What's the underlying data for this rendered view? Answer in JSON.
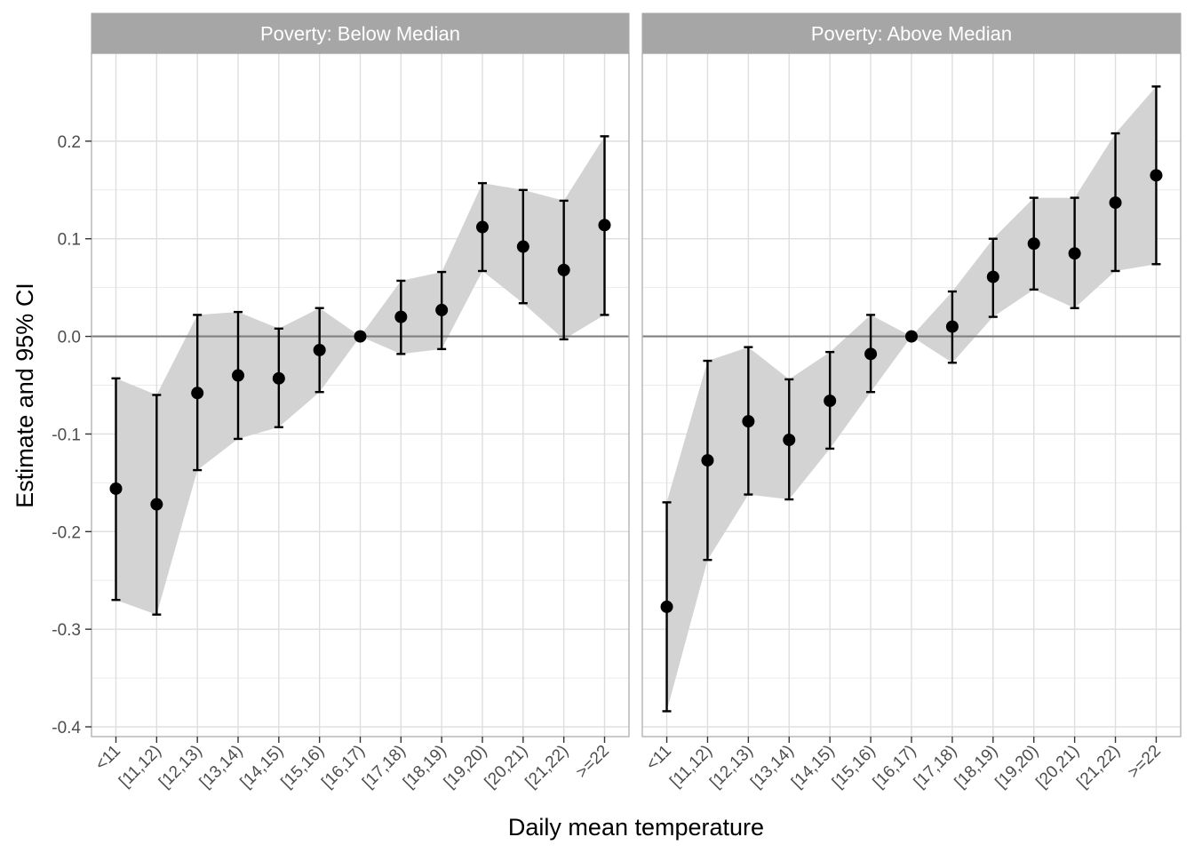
{
  "chart_data": {
    "type": "scatter",
    "ylabel": "Estimate and 95% CI",
    "xlabel": "Daily mean temperature",
    "categories": [
      "<11",
      "[11,12)",
      "[12,13)",
      "[13,14)",
      "[14,15)",
      "[15,16)",
      "[16,17)",
      "[17,18)",
      "[18,19)",
      "[19,20)",
      "[20,21)",
      "[21,22)",
      ">=22"
    ],
    "ylim": [
      -0.41,
      0.29
    ],
    "yticks": [
      -0.4,
      -0.3,
      -0.2,
      -0.1,
      0.0,
      0.1,
      0.2
    ],
    "ytick_labels": [
      "-0.4",
      "-0.3",
      "-0.2",
      "-0.1",
      "0.0",
      "0.1",
      "0.2"
    ],
    "reference_line": 0,
    "grid": true,
    "panels": [
      {
        "strip_label": "Poverty: Below Median",
        "estimate": [
          -0.156,
          -0.172,
          -0.058,
          -0.04,
          -0.043,
          -0.014,
          0.0,
          0.02,
          0.027,
          0.112,
          0.092,
          0.068,
          0.114
        ],
        "ci_lower": [
          -0.27,
          -0.285,
          -0.137,
          -0.105,
          -0.093,
          -0.057,
          0.0,
          -0.018,
          -0.013,
          0.067,
          0.034,
          -0.003,
          0.022
        ],
        "ci_upper": [
          -0.043,
          -0.06,
          0.022,
          0.025,
          0.008,
          0.029,
          0.0,
          0.057,
          0.066,
          0.157,
          0.15,
          0.139,
          0.205
        ]
      },
      {
        "strip_label": "Poverty: Above Median",
        "estimate": [
          -0.277,
          -0.127,
          -0.087,
          -0.106,
          -0.066,
          -0.018,
          0.0,
          0.01,
          0.061,
          0.095,
          0.085,
          0.137,
          0.165
        ],
        "ci_lower": [
          -0.384,
          -0.229,
          -0.162,
          -0.167,
          -0.115,
          -0.057,
          0.0,
          -0.027,
          0.02,
          0.048,
          0.029,
          0.067,
          0.074
        ],
        "ci_upper": [
          -0.17,
          -0.025,
          -0.011,
          -0.044,
          -0.016,
          0.022,
          0.0,
          0.046,
          0.1,
          0.142,
          0.142,
          0.208,
          0.256
        ]
      }
    ]
  }
}
